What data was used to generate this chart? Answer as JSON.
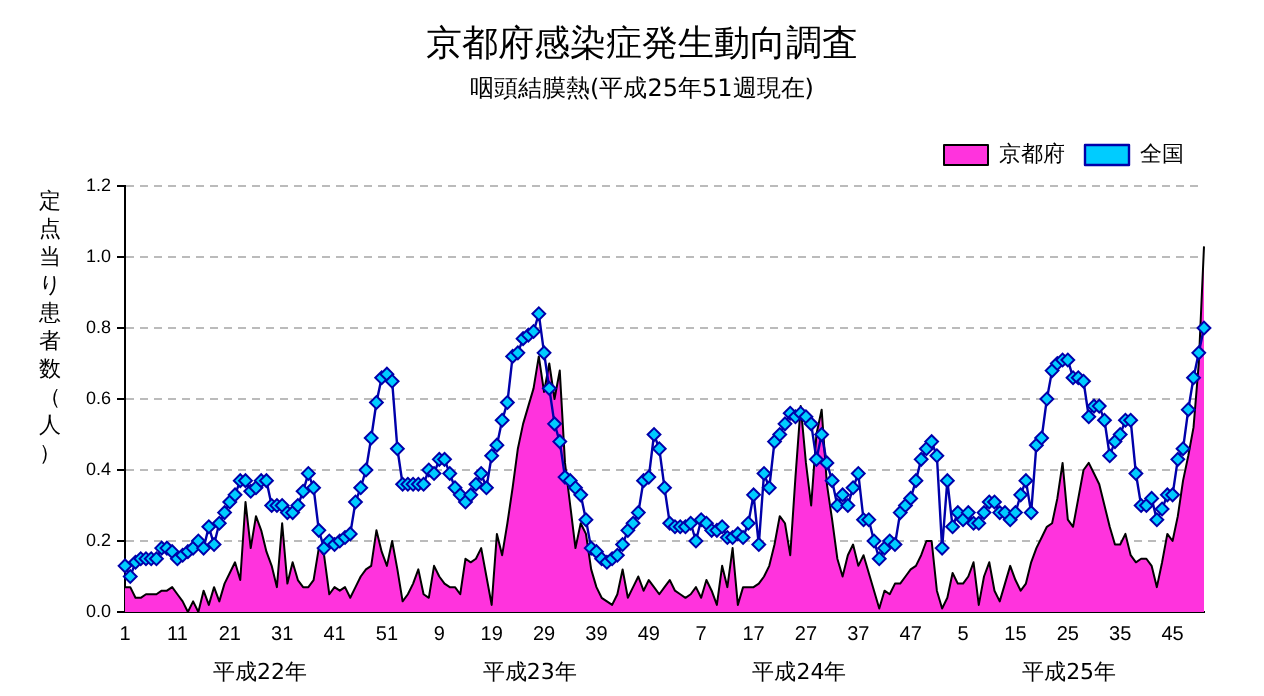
{
  "chart_data": {
    "type": "area",
    "title": "京都府感染症発生動向調査",
    "subtitle": "咽頭結膜熱(平成25年51週現在)",
    "ylabel": "定点当り患者数（人）",
    "categories": [
      "1",
      null,
      null,
      null,
      null,
      null,
      null,
      null,
      null,
      null,
      "11",
      null,
      null,
      null,
      null,
      null,
      null,
      null,
      null,
      null,
      "21",
      null,
      null,
      null,
      null,
      null,
      null,
      null,
      null,
      null,
      "31",
      null,
      null,
      null,
      null,
      null,
      null,
      null,
      null,
      null,
      "41",
      null,
      null,
      null,
      null,
      null,
      null,
      null,
      null,
      null,
      "51",
      null,
      null,
      null,
      null,
      null,
      null,
      null,
      null,
      null,
      "9",
      null,
      null,
      null,
      null,
      null,
      null,
      null,
      null,
      null,
      "19",
      null,
      null,
      null,
      null,
      null,
      null,
      null,
      null,
      null,
      "29",
      null,
      null,
      null,
      null,
      null,
      null,
      null,
      null,
      null,
      "39",
      null,
      null,
      null,
      null,
      null,
      null,
      null,
      null,
      null,
      "49",
      null,
      null,
      null,
      null,
      null,
      null,
      null,
      null,
      null,
      "7",
      null,
      null,
      null,
      null,
      null,
      null,
      null,
      null,
      null,
      "17",
      null,
      null,
      null,
      null,
      null,
      null,
      null,
      null,
      null,
      "27",
      null,
      null,
      null,
      null,
      null,
      null,
      null,
      null,
      null,
      "37",
      null,
      null,
      null,
      null,
      null,
      null,
      null,
      null,
      null,
      "47",
      null,
      null,
      null,
      null,
      null,
      null,
      null,
      null,
      null,
      "5",
      null,
      null,
      null,
      null,
      null,
      null,
      null,
      null,
      null,
      "15",
      null,
      null,
      null,
      null,
      null,
      null,
      null,
      null,
      null,
      "25",
      null,
      null,
      null,
      null,
      null,
      null,
      null,
      null,
      null,
      "35",
      null,
      null,
      null,
      null,
      null,
      null,
      null,
      null,
      null,
      "45",
      null,
      null,
      null,
      null,
      null,
      null
    ],
    "series": [
      {
        "name": "京都府",
        "color": "#ff33dd",
        "values": [
          0.07,
          0.07,
          0.04,
          0.04,
          0.05,
          0.05,
          0.05,
          0.06,
          0.06,
          0.07,
          0.05,
          0.03,
          0.0,
          0.03,
          0.0,
          0.06,
          0.02,
          0.07,
          0.03,
          0.08,
          0.11,
          0.14,
          0.09,
          0.31,
          0.18,
          0.27,
          0.23,
          0.17,
          0.13,
          0.07,
          0.25,
          0.08,
          0.14,
          0.09,
          0.07,
          0.07,
          0.09,
          0.18,
          0.16,
          0.05,
          0.07,
          0.06,
          0.07,
          0.04,
          0.07,
          0.1,
          0.12,
          0.13,
          0.23,
          0.17,
          0.13,
          0.2,
          0.12,
          0.03,
          0.05,
          0.08,
          0.12,
          0.05,
          0.04,
          0.13,
          0.1,
          0.08,
          0.07,
          0.07,
          0.05,
          0.15,
          0.14,
          0.15,
          0.18,
          0.1,
          0.02,
          0.22,
          0.16,
          0.25,
          0.35,
          0.46,
          0.53,
          0.58,
          0.63,
          0.72,
          0.62,
          0.7,
          0.6,
          0.68,
          0.42,
          0.3,
          0.18,
          0.25,
          0.22,
          0.12,
          0.07,
          0.04,
          0.03,
          0.02,
          0.05,
          0.12,
          0.04,
          0.07,
          0.1,
          0.06,
          0.09,
          0.07,
          0.05,
          0.07,
          0.09,
          0.06,
          0.05,
          0.04,
          0.05,
          0.07,
          0.04,
          0.09,
          0.06,
          0.02,
          0.13,
          0.07,
          0.18,
          0.02,
          0.07,
          0.07,
          0.07,
          0.08,
          0.1,
          0.13,
          0.19,
          0.27,
          0.25,
          0.16,
          0.38,
          0.58,
          0.42,
          0.3,
          0.5,
          0.57,
          0.36,
          0.26,
          0.15,
          0.1,
          0.16,
          0.19,
          0.13,
          0.16,
          0.11,
          0.06,
          0.01,
          0.06,
          0.05,
          0.08,
          0.08,
          0.1,
          0.12,
          0.13,
          0.16,
          0.2,
          0.2,
          0.06,
          0.01,
          0.04,
          0.11,
          0.08,
          0.08,
          0.1,
          0.14,
          0.02,
          0.1,
          0.14,
          0.06,
          0.03,
          0.08,
          0.13,
          0.09,
          0.06,
          0.08,
          0.14,
          0.18,
          0.21,
          0.24,
          0.25,
          0.32,
          0.42,
          0.26,
          0.24,
          0.32,
          0.4,
          0.42,
          0.39,
          0.36,
          0.3,
          0.24,
          0.19,
          0.19,
          0.22,
          0.16,
          0.14,
          0.15,
          0.15,
          0.13,
          0.07,
          0.14,
          0.22,
          0.2,
          0.27,
          0.37,
          0.44,
          0.52,
          0.7,
          1.03
        ]
      },
      {
        "name": "全国",
        "type": "line",
        "marker": "diamond",
        "color": "#0000aa",
        "values": [
          0.13,
          0.1,
          0.14,
          0.15,
          0.15,
          0.15,
          0.15,
          0.18,
          0.18,
          0.17,
          0.15,
          0.16,
          0.17,
          0.18,
          0.2,
          0.18,
          0.24,
          0.19,
          0.25,
          0.28,
          0.31,
          0.33,
          0.37,
          0.37,
          0.34,
          0.35,
          0.37,
          0.37,
          0.3,
          0.3,
          0.3,
          0.28,
          0.28,
          0.3,
          0.34,
          0.39,
          0.35,
          0.23,
          0.18,
          0.2,
          0.19,
          0.2,
          0.21,
          0.22,
          0.31,
          0.35,
          0.4,
          0.49,
          0.59,
          0.66,
          0.67,
          0.65,
          0.46,
          0.36,
          0.36,
          0.36,
          0.36,
          0.36,
          0.4,
          0.39,
          0.43,
          0.43,
          0.39,
          0.35,
          0.33,
          0.31,
          0.33,
          0.36,
          0.39,
          0.35,
          0.44,
          0.47,
          0.54,
          0.59,
          0.72,
          0.73,
          0.77,
          0.78,
          0.79,
          0.84,
          0.73,
          0.63,
          0.53,
          0.48,
          0.38,
          0.37,
          0.35,
          0.33,
          0.26,
          0.18,
          0.17,
          0.15,
          0.14,
          0.15,
          0.16,
          0.19,
          0.23,
          0.25,
          0.28,
          0.37,
          0.38,
          0.5,
          0.46,
          0.35,
          0.25,
          0.24,
          0.24,
          0.24,
          0.25,
          0.2,
          0.26,
          0.25,
          0.23,
          0.23,
          0.24,
          0.21,
          0.21,
          0.22,
          0.21,
          0.25,
          0.33,
          0.19,
          0.39,
          0.35,
          0.48,
          0.5,
          0.53,
          0.56,
          0.55,
          0.56,
          0.55,
          0.53,
          0.43,
          0.5,
          0.42,
          0.37,
          0.3,
          0.33,
          0.3,
          0.35,
          0.39,
          0.26,
          0.26,
          0.2,
          0.15,
          0.18,
          0.2,
          0.19,
          0.28,
          0.3,
          0.32,
          0.37,
          0.43,
          0.46,
          0.48,
          0.44,
          0.18,
          0.37,
          0.24,
          0.28,
          0.26,
          0.28,
          0.25,
          0.25,
          0.28,
          0.31,
          0.31,
          0.28,
          0.28,
          0.26,
          0.28,
          0.33,
          0.37,
          0.28,
          0.47,
          0.49,
          0.6,
          0.68,
          0.7,
          0.71,
          0.71,
          0.66,
          0.66,
          0.65,
          0.55,
          0.58,
          0.58,
          0.54,
          0.44,
          0.48,
          0.5,
          0.54,
          0.54,
          0.39,
          0.3,
          0.3,
          0.32,
          0.26,
          0.29,
          0.33,
          0.33,
          0.43,
          0.46,
          0.57,
          0.66,
          0.73,
          0.8
        ]
      }
    ],
    "ylim": [
      0,
      1.2
    ],
    "yticks": [
      {
        "value": 0,
        "label": "0.0"
      },
      {
        "value": 0.2,
        "label": "0.2"
      },
      {
        "value": 0.4,
        "label": "0.4"
      },
      {
        "value": 0.6,
        "label": "0.6"
      },
      {
        "value": 0.8,
        "label": "0.8"
      },
      {
        "value": 1.0,
        "label": "1.0"
      },
      {
        "value": 1.2,
        "label": "1.2"
      }
    ],
    "grid": "y",
    "legend": "top right",
    "annotations": [
      "平成22年",
      "平成23年",
      "平成24年",
      "平成25年"
    ]
  }
}
